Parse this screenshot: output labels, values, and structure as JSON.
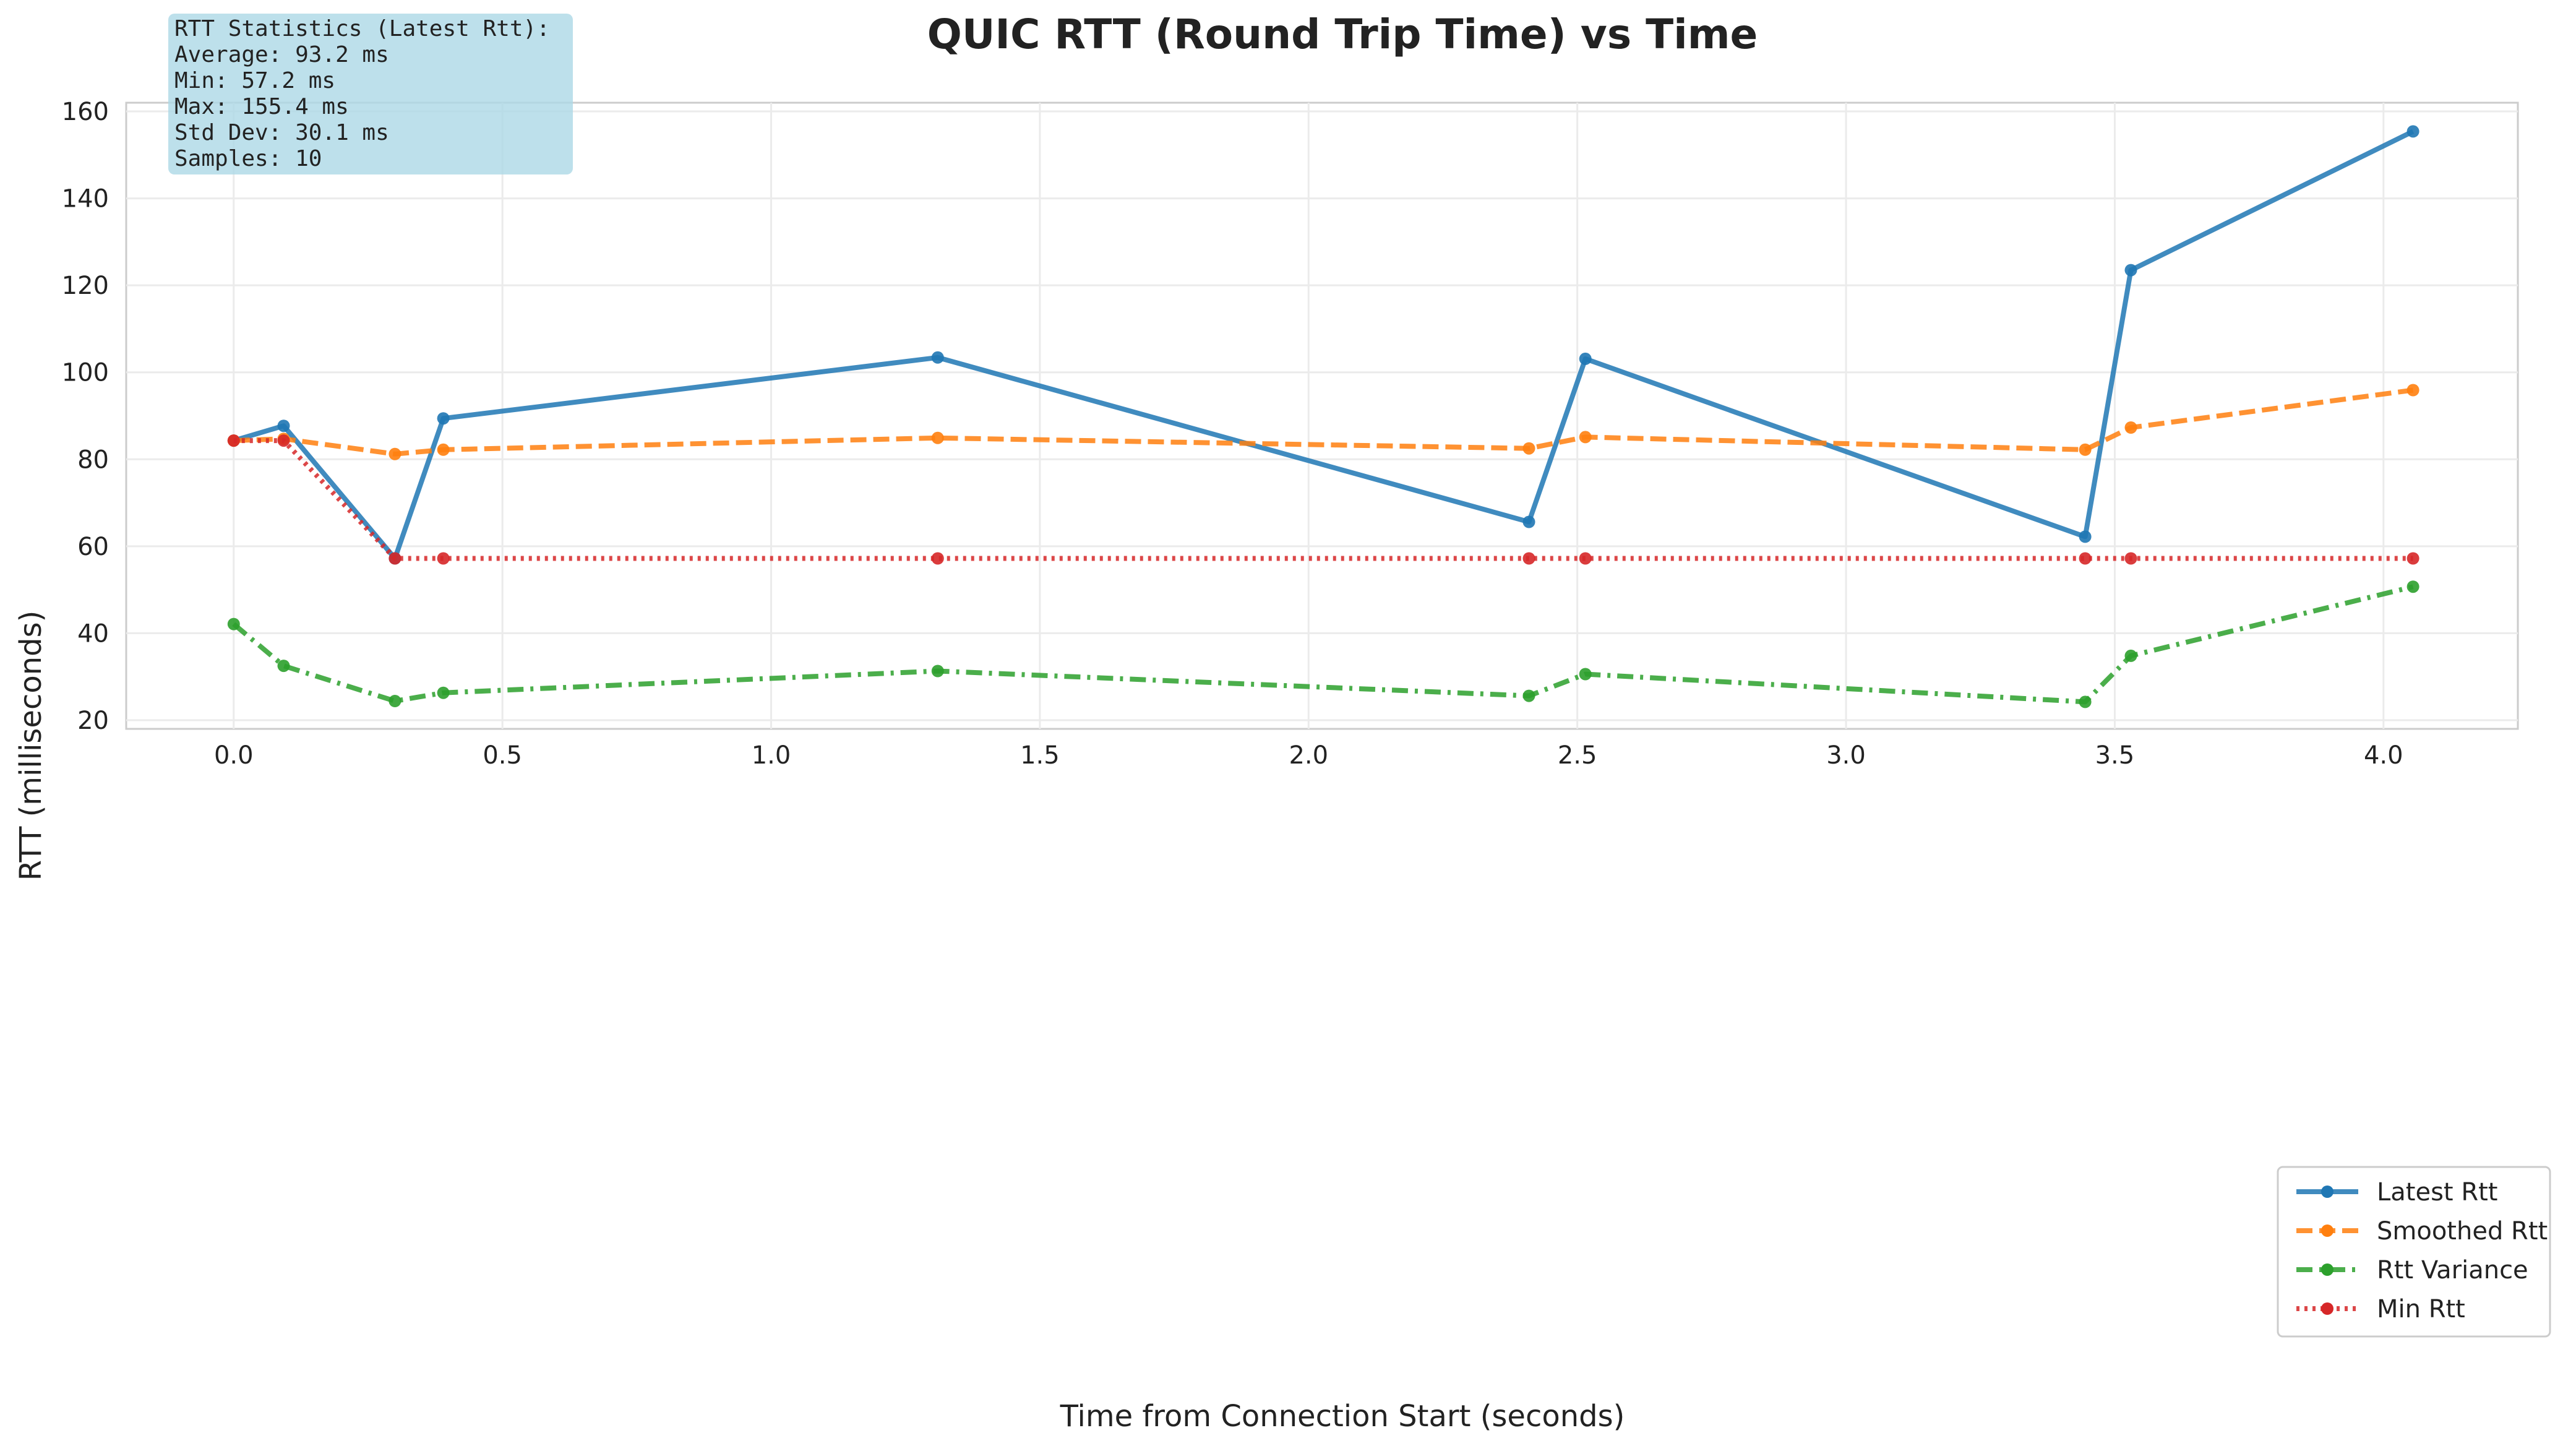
{
  "chart_data": {
    "type": "line",
    "title": "QUIC RTT (Round Trip Time) vs Time",
    "xlabel": "Time from Connection Start (seconds)",
    "ylabel": "RTT (milliseconds)",
    "xlim": [
      -0.2,
      4.25
    ],
    "ylim": [
      18,
      162
    ],
    "x_ticks": [
      0.0,
      0.5,
      1.0,
      1.5,
      2.0,
      2.5,
      3.0,
      3.5,
      4.0
    ],
    "x_tick_labels": [
      "0.0",
      "0.5",
      "1.0",
      "1.5",
      "2.0",
      "2.5",
      "3.0",
      "3.5",
      "4.0"
    ],
    "y_ticks": [
      20,
      40,
      60,
      80,
      100,
      120,
      140,
      160
    ],
    "y_tick_labels": [
      "20",
      "40",
      "60",
      "80",
      "100",
      "120",
      "140",
      "160"
    ],
    "grid": true,
    "legend_position": "bottom-right",
    "x": [
      0.0,
      0.093,
      0.3,
      0.39,
      1.31,
      2.41,
      2.515,
      3.445,
      3.53,
      4.055
    ],
    "series": [
      {
        "name": "Latest Rtt",
        "color": "#1f77b4",
        "style": "solid",
        "values": [
          84.3,
          87.7,
          57.2,
          89.4,
          103.4,
          65.6,
          103.1,
          62.2,
          123.5,
          155.4
        ]
      },
      {
        "name": "Smoothed Rtt",
        "color": "#ff7f0e",
        "style": "dashed",
        "values": [
          84.3,
          84.7,
          81.2,
          82.2,
          84.9,
          82.5,
          85.1,
          82.2,
          87.3,
          95.9
        ]
      },
      {
        "name": "Rtt Variance",
        "color": "#2ca02c",
        "style": "dashdot",
        "values": [
          42.1,
          32.5,
          24.4,
          26.3,
          31.3,
          25.6,
          30.6,
          24.2,
          34.8,
          50.7
        ]
      },
      {
        "name": "Min Rtt",
        "color": "#d62728",
        "style": "dotted",
        "values": [
          84.3,
          84.3,
          57.2,
          57.2,
          57.2,
          57.2,
          57.2,
          57.2,
          57.2,
          57.2
        ]
      }
    ],
    "annotation": {
      "lines": [
        "RTT Statistics (Latest Rtt):",
        "Average: 93.2 ms",
        "Min: 57.2 ms",
        "Max: 155.4 ms",
        "Std Dev: 30.1 ms",
        "Samples: 10"
      ],
      "background_color": "#add8e6"
    }
  }
}
